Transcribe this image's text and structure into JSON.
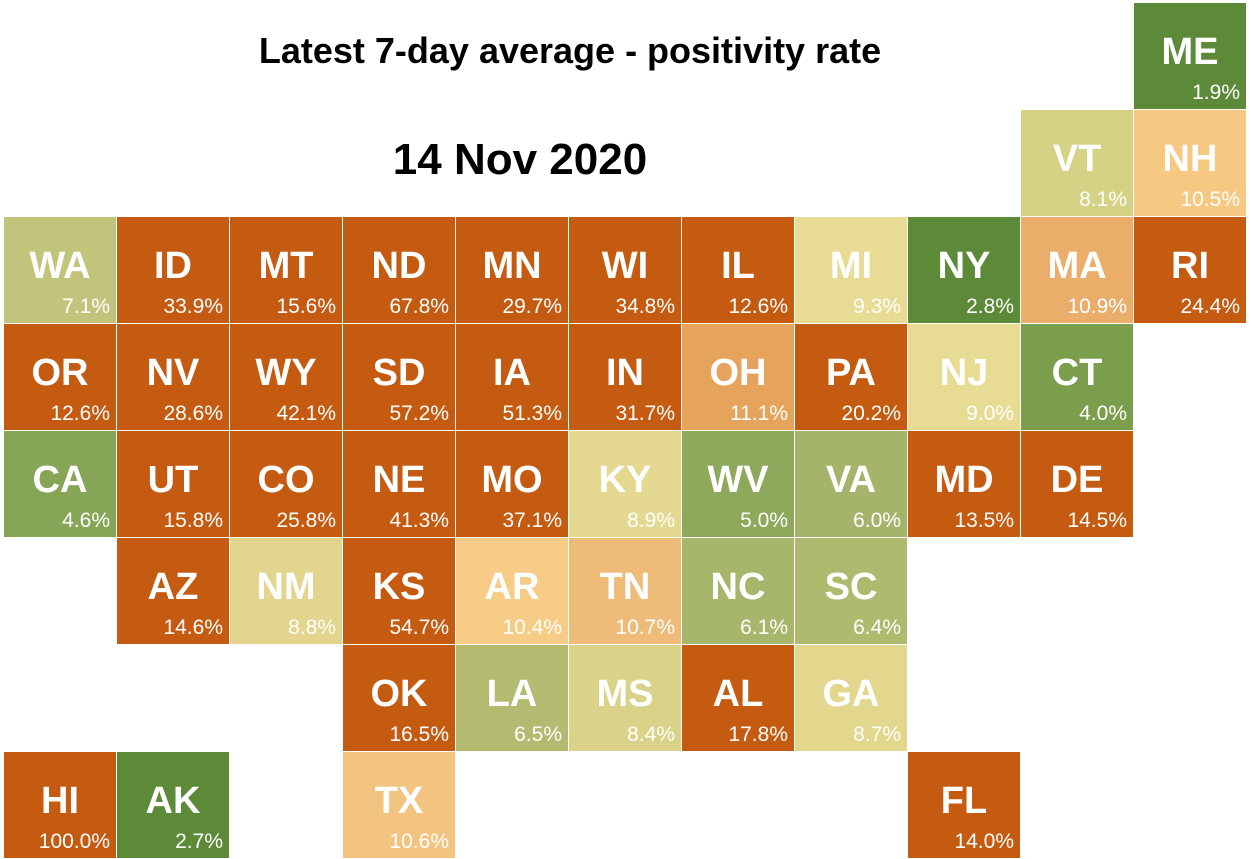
{
  "title": "Latest 7-day average - positivity rate",
  "date": "14 Nov 2020",
  "chart_data": {
    "type": "heatmap",
    "title": "Latest 7-day average - positivity rate",
    "subtitle": "14 Nov 2020",
    "cells": [
      {
        "state": "ME",
        "label": "1.9%",
        "value": 1.9,
        "col": 10,
        "row": 0,
        "color": "#5c8a38"
      },
      {
        "state": "VT",
        "label": "8.1%",
        "value": 8.1,
        "col": 9,
        "row": 1,
        "color": "#d5d185"
      },
      {
        "state": "NH",
        "label": "10.5%",
        "value": 10.5,
        "col": 10,
        "row": 1,
        "color": "#f6c983"
      },
      {
        "state": "WA",
        "label": "7.1%",
        "value": 7.1,
        "col": 0,
        "row": 2,
        "color": "#c3c47c"
      },
      {
        "state": "ID",
        "label": "33.9%",
        "value": 33.9,
        "col": 1,
        "row": 2,
        "color": "#c55a11"
      },
      {
        "state": "MT",
        "label": "15.6%",
        "value": 15.6,
        "col": 2,
        "row": 2,
        "color": "#c55a11"
      },
      {
        "state": "ND",
        "label": "67.8%",
        "value": 67.8,
        "col": 3,
        "row": 2,
        "color": "#c55a11"
      },
      {
        "state": "MN",
        "label": "29.7%",
        "value": 29.7,
        "col": 4,
        "row": 2,
        "color": "#c55a11"
      },
      {
        "state": "WI",
        "label": "34.8%",
        "value": 34.8,
        "col": 5,
        "row": 2,
        "color": "#c55a11"
      },
      {
        "state": "IL",
        "label": "12.6%",
        "value": 12.6,
        "col": 6,
        "row": 2,
        "color": "#c55a11"
      },
      {
        "state": "MI",
        "label": "9.3%",
        "value": 9.3,
        "col": 7,
        "row": 2,
        "color": "#e8dc94"
      },
      {
        "state": "NY",
        "label": "2.8%",
        "value": 2.8,
        "col": 8,
        "row": 2,
        "color": "#5c8a38"
      },
      {
        "state": "MA",
        "label": "10.9%",
        "value": 10.9,
        "col": 9,
        "row": 2,
        "color": "#eaad6a"
      },
      {
        "state": "RI",
        "label": "24.4%",
        "value": 24.4,
        "col": 10,
        "row": 2,
        "color": "#c55a11"
      },
      {
        "state": "OR",
        "label": "12.6%",
        "value": 12.6,
        "col": 0,
        "row": 3,
        "color": "#c55a11"
      },
      {
        "state": "NV",
        "label": "28.6%",
        "value": 28.6,
        "col": 1,
        "row": 3,
        "color": "#c55a11"
      },
      {
        "state": "WY",
        "label": "42.1%",
        "value": 42.1,
        "col": 2,
        "row": 3,
        "color": "#c55a11"
      },
      {
        "state": "SD",
        "label": "57.2%",
        "value": 57.2,
        "col": 3,
        "row": 3,
        "color": "#c55a11"
      },
      {
        "state": "IA",
        "label": "51.3%",
        "value": 51.3,
        "col": 4,
        "row": 3,
        "color": "#c55a11"
      },
      {
        "state": "IN",
        "label": "31.7%",
        "value": 31.7,
        "col": 5,
        "row": 3,
        "color": "#c55a11"
      },
      {
        "state": "OH",
        "label": "11.1%",
        "value": 11.1,
        "col": 6,
        "row": 3,
        "color": "#e6a35c"
      },
      {
        "state": "PA",
        "label": "20.2%",
        "value": 20.2,
        "col": 7,
        "row": 3,
        "color": "#c55a11"
      },
      {
        "state": "NJ",
        "label": "9.0%",
        "value": 9.0,
        "col": 8,
        "row": 3,
        "color": "#e8dc94"
      },
      {
        "state": "CT",
        "label": "4.0%",
        "value": 4.0,
        "col": 9,
        "row": 3,
        "color": "#7b9e4c"
      },
      {
        "state": "CA",
        "label": "4.6%",
        "value": 4.6,
        "col": 0,
        "row": 4,
        "color": "#86a557"
      },
      {
        "state": "UT",
        "label": "15.8%",
        "value": 15.8,
        "col": 1,
        "row": 4,
        "color": "#c55a11"
      },
      {
        "state": "CO",
        "label": "25.8%",
        "value": 25.8,
        "col": 2,
        "row": 4,
        "color": "#c55a11"
      },
      {
        "state": "NE",
        "label": "41.3%",
        "value": 41.3,
        "col": 3,
        "row": 4,
        "color": "#c55a11"
      },
      {
        "state": "MO",
        "label": "37.1%",
        "value": 37.1,
        "col": 4,
        "row": 4,
        "color": "#c55a11"
      },
      {
        "state": "KY",
        "label": "8.9%",
        "value": 8.9,
        "col": 5,
        "row": 4,
        "color": "#e5d890"
      },
      {
        "state": "WV",
        "label": "5.0%",
        "value": 5.0,
        "col": 6,
        "row": 4,
        "color": "#8ea85c"
      },
      {
        "state": "VA",
        "label": "6.0%",
        "value": 6.0,
        "col": 7,
        "row": 4,
        "color": "#a4b46a"
      },
      {
        "state": "MD",
        "label": "13.5%",
        "value": 13.5,
        "col": 8,
        "row": 4,
        "color": "#c55a11"
      },
      {
        "state": "DE",
        "label": "14.5%",
        "value": 14.5,
        "col": 9,
        "row": 4,
        "color": "#c55a11"
      },
      {
        "state": "AZ",
        "label": "14.6%",
        "value": 14.6,
        "col": 1,
        "row": 5,
        "color": "#c55a11"
      },
      {
        "state": "NM",
        "label": "8.8%",
        "value": 8.8,
        "col": 2,
        "row": 5,
        "color": "#e3d58d"
      },
      {
        "state": "KS",
        "label": "54.7%",
        "value": 54.7,
        "col": 3,
        "row": 5,
        "color": "#c55a11"
      },
      {
        "state": "AR",
        "label": "10.4%",
        "value": 10.4,
        "col": 4,
        "row": 5,
        "color": "#f6cc86"
      },
      {
        "state": "TN",
        "label": "10.7%",
        "value": 10.7,
        "col": 5,
        "row": 5,
        "color": "#eebb78"
      },
      {
        "state": "NC",
        "label": "6.1%",
        "value": 6.1,
        "col": 6,
        "row": 5,
        "color": "#a6b66b"
      },
      {
        "state": "SC",
        "label": "6.4%",
        "value": 6.4,
        "col": 7,
        "row": 5,
        "color": "#b0ba6f"
      },
      {
        "state": "OK",
        "label": "16.5%",
        "value": 16.5,
        "col": 3,
        "row": 6,
        "color": "#c55a11"
      },
      {
        "state": "LA",
        "label": "6.5%",
        "value": 6.5,
        "col": 4,
        "row": 6,
        "color": "#b2bb70"
      },
      {
        "state": "MS",
        "label": "8.4%",
        "value": 8.4,
        "col": 5,
        "row": 6,
        "color": "#dad289"
      },
      {
        "state": "AL",
        "label": "17.8%",
        "value": 17.8,
        "col": 6,
        "row": 6,
        "color": "#c55a11"
      },
      {
        "state": "GA",
        "label": "8.7%",
        "value": 8.7,
        "col": 7,
        "row": 6,
        "color": "#e3d68d"
      },
      {
        "state": "HI",
        "label": "100.0%",
        "value": 100.0,
        "col": 0,
        "row": 7,
        "color": "#c55a11"
      },
      {
        "state": "AK",
        "label": "2.7%",
        "value": 2.7,
        "col": 1,
        "row": 7,
        "color": "#5c8a38"
      },
      {
        "state": "TX",
        "label": "10.6%",
        "value": 10.6,
        "col": 3,
        "row": 7,
        "color": "#f3c480"
      },
      {
        "state": "FL",
        "label": "14.0%",
        "value": 14.0,
        "col": 8,
        "row": 7,
        "color": "#c55a11"
      }
    ]
  }
}
